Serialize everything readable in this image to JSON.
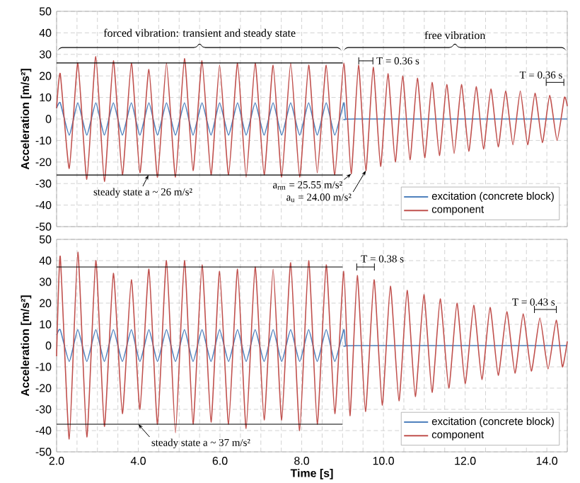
{
  "chart_data": [
    {
      "type": "line",
      "ylabel": "Acceleration [m/s²]",
      "xlim": [
        2.0,
        14.5
      ],
      "ylim": [
        -50,
        50
      ],
      "xticks": [
        {
          "value": 2,
          "label": null
        },
        {
          "value": 2.5,
          "label": null
        },
        {
          "value": 3,
          "label": null
        },
        {
          "value": 3.5,
          "label": null
        },
        {
          "value": 4,
          "label": null
        },
        {
          "value": 4.5,
          "label": null
        },
        {
          "value": 5,
          "label": null
        },
        {
          "value": 5.5,
          "label": null
        },
        {
          "value": 6,
          "label": null
        },
        {
          "value": 6.5,
          "label": null
        },
        {
          "value": 7,
          "label": null
        },
        {
          "value": 7.5,
          "label": null
        },
        {
          "value": 8,
          "label": null
        },
        {
          "value": 8.5,
          "label": null
        },
        {
          "value": 9,
          "label": null
        },
        {
          "value": 9.5,
          "label": null
        },
        {
          "value": 10,
          "label": null
        },
        {
          "value": 10.5,
          "label": null
        },
        {
          "value": 11,
          "label": null
        },
        {
          "value": 11.5,
          "label": null
        },
        {
          "value": 12,
          "label": null
        },
        {
          "value": 12.5,
          "label": null
        },
        {
          "value": 13,
          "label": null
        },
        {
          "value": 13.5,
          "label": null
        },
        {
          "value": 14,
          "label": null
        },
        {
          "value": 14.5,
          "label": null
        }
      ],
      "yticks": [
        -50,
        -40,
        -30,
        -20,
        -10,
        0,
        10,
        20,
        30,
        40,
        50
      ],
      "tick_labels": "y",
      "grid": true,
      "legend": "bottom right",
      "series": [
        {
          "name": "excitation (concrete block)",
          "color": "#4f81bd",
          "x": [
            2.0,
            2.09,
            2.31,
            2.52,
            2.74,
            2.96,
            3.17,
            3.39,
            3.61,
            3.83,
            4.04,
            4.26,
            4.47,
            4.69,
            4.91,
            5.13,
            5.34,
            5.56,
            5.78,
            5.99,
            6.21,
            6.43,
            6.64,
            6.86,
            7.08,
            7.3,
            7.51,
            7.73,
            7.95,
            8.17,
            8.38,
            8.6,
            8.81,
            9.03,
            9.08,
            9.3,
            14.5
          ],
          "values": [
            5,
            7.5,
            -7.5,
            7.5,
            -7.5,
            7.5,
            -7.5,
            7.5,
            -7.5,
            7.5,
            -7.5,
            7.5,
            -7.5,
            7.5,
            -7.5,
            7.5,
            -7.5,
            7.5,
            -7.5,
            7.5,
            -7.5,
            7.5,
            -7.5,
            7.5,
            -7.5,
            7.5,
            -7.5,
            7.5,
            -7.5,
            7.5,
            -7.5,
            7.5,
            -7.5,
            7.5,
            0,
            0,
            0
          ]
        },
        {
          "name": "component",
          "color": "#c0504d",
          "x": [
            2.0,
            2.09,
            2.31,
            2.52,
            2.74,
            2.96,
            3.17,
            3.39,
            3.61,
            3.83,
            4.04,
            4.26,
            4.47,
            4.69,
            4.91,
            5.13,
            5.34,
            5.56,
            5.78,
            5.99,
            6.21,
            6.43,
            6.64,
            6.86,
            7.08,
            7.3,
            7.51,
            7.73,
            7.95,
            8.17,
            8.38,
            8.6,
            8.81,
            9.03,
            9.21,
            9.39,
            9.57,
            9.75,
            9.93,
            10.11,
            10.29,
            10.47,
            10.65,
            10.83,
            11.01,
            11.19,
            11.37,
            11.55,
            11.73,
            11.91,
            12.09,
            12.27,
            12.45,
            12.63,
            12.81,
            12.99,
            13.17,
            13.35,
            13.53,
            13.71,
            13.89,
            14.07,
            14.25,
            14.43,
            14.5
          ],
          "values": [
            5,
            21,
            -23,
            26,
            -28,
            29,
            -29,
            27,
            -26,
            26,
            -25,
            23,
            -27,
            26,
            -27,
            28,
            -24,
            27,
            -26,
            25,
            -26,
            26,
            -27,
            26,
            -26,
            25,
            -27,
            26,
            -27,
            25,
            -25,
            25,
            -26,
            26,
            -25.5,
            25,
            -24,
            24,
            -22,
            21,
            -20,
            20,
            -19,
            19,
            -18,
            17,
            -17,
            16,
            -16,
            16,
            -15,
            15,
            -14,
            14,
            -13,
            13,
            -12,
            13,
            -12,
            12,
            -11,
            11,
            -10,
            10,
            6
          ]
        },
        {
          "type": "line",
          "color": "#000000",
          "x": [
            2.0,
            9.0
          ],
          "values": [
            26,
            26
          ]
        },
        {
          "type": "line",
          "color": "#000000",
          "x": [
            2.0,
            9.0
          ],
          "values": [
            -26,
            -26
          ]
        }
      ],
      "annotations": [
        {
          "text": "steady state a ~ 26 m/s²",
          "x": 4.25,
          "y": -26
        },
        {
          "text": "a$_{rm}$ = 25.55 m/s²",
          "x": 9.21,
          "y": -25.5
        },
        {
          "text": "a$_{u}$ = 24.00 m/s²",
          "x": 9.57,
          "y": -24
        },
        "T = 0.36 s",
        "T = 0.36 s",
        "forced vibration: transient and steady state",
        "free vibration"
      ]
    },
    {
      "type": "line",
      "xlabel": "Time [s]",
      "ylabel": "Acceleration [m/s²]",
      "xlim": [
        2.0,
        14.5
      ],
      "ylim": [
        -50,
        50
      ],
      "xticks": [
        {
          "value": 2,
          "label": "2.0"
        },
        {
          "value": 2.5,
          "label": null
        },
        {
          "value": 3,
          "label": null
        },
        {
          "value": 3.5,
          "label": null
        },
        {
          "value": 4,
          "label": "4.0"
        },
        {
          "value": 4.5,
          "label": null
        },
        {
          "value": 5,
          "label": null
        },
        {
          "value": 5.5,
          "label": null
        },
        {
          "value": 6,
          "label": "6.0"
        },
        {
          "value": 6.5,
          "label": null
        },
        {
          "value": 7,
          "label": null
        },
        {
          "value": 7.5,
          "label": null
        },
        {
          "value": 8,
          "label": "8.0"
        },
        {
          "value": 8.5,
          "label": null
        },
        {
          "value": 9,
          "label": null
        },
        {
          "value": 9.5,
          "label": null
        },
        {
          "value": 10,
          "label": "10.0"
        },
        {
          "value": 10.5,
          "label": null
        },
        {
          "value": 11,
          "label": null
        },
        {
          "value": 11.5,
          "label": null
        },
        {
          "value": 12,
          "label": "12.0"
        },
        {
          "value": 12.5,
          "label": null
        },
        {
          "value": 13,
          "label": null
        },
        {
          "value": 13.5,
          "label": null
        },
        {
          "value": 14,
          "label": "14.0"
        },
        {
          "value": 14.5,
          "label": null
        }
      ],
      "yticks": [
        -50,
        -40,
        -30,
        -20,
        -10,
        0,
        10,
        20,
        30,
        40,
        50
      ],
      "grid": true,
      "legend": "bottom right",
      "series": [
        {
          "name": "excitation (concrete block)",
          "color": "#4f81bd",
          "x": [
            2.0,
            2.09,
            2.31,
            2.52,
            2.74,
            2.96,
            3.17,
            3.39,
            3.61,
            3.83,
            4.04,
            4.26,
            4.47,
            4.69,
            4.91,
            5.13,
            5.34,
            5.56,
            5.78,
            5.99,
            6.21,
            6.43,
            6.64,
            6.86,
            7.08,
            7.3,
            7.51,
            7.73,
            7.95,
            8.17,
            8.38,
            8.6,
            8.81,
            9.03,
            9.08,
            9.3,
            14.5
          ],
          "values": [
            5,
            7.5,
            -7.5,
            7.5,
            -7.5,
            7.5,
            -7.5,
            7.5,
            -7.5,
            7.5,
            -7.5,
            7.5,
            -7.5,
            7.5,
            -7.5,
            7.5,
            -7.5,
            7.5,
            -7.5,
            7.5,
            -7.5,
            7.5,
            -7.5,
            7.5,
            -7.5,
            7.5,
            -7.5,
            7.5,
            -7.5,
            7.5,
            -7.5,
            7.5,
            -7.5,
            7.5,
            0,
            0,
            0
          ]
        },
        {
          "name": "component",
          "color": "#c0504d",
          "x": [
            2.0,
            2.09,
            2.31,
            2.52,
            2.74,
            2.96,
            3.17,
            3.39,
            3.61,
            3.83,
            4.04,
            4.26,
            4.47,
            4.69,
            4.91,
            5.13,
            5.34,
            5.56,
            5.78,
            5.99,
            6.21,
            6.43,
            6.64,
            6.86,
            7.08,
            7.3,
            7.51,
            7.73,
            7.95,
            8.17,
            8.38,
            8.6,
            8.81,
            9.03,
            9.18,
            9.36,
            9.56,
            9.77,
            9.97,
            10.17,
            10.38,
            10.58,
            10.78,
            10.99,
            11.19,
            11.39,
            11.6,
            11.8,
            12.0,
            12.21,
            12.41,
            12.61,
            12.81,
            13.02,
            13.22,
            13.42,
            13.62,
            13.83,
            14.03,
            14.23,
            14.38,
            14.5
          ],
          "values": [
            -5,
            42,
            -44,
            44,
            -43,
            40,
            -38,
            34,
            -32,
            31,
            -30,
            36,
            -37,
            40,
            -41,
            40,
            -37,
            38,
            -36,
            35,
            -37,
            36,
            -39,
            37,
            -35,
            36,
            -35,
            39,
            -40,
            40,
            -37,
            38,
            -32,
            35,
            -33,
            33,
            -31,
            31,
            -28,
            28,
            -26,
            26,
            -24,
            24,
            -22,
            22,
            -20,
            20,
            -18,
            19,
            -16,
            18,
            -14,
            16,
            -13,
            15,
            -12,
            13,
            -11,
            12,
            -10,
            2
          ]
        },
        {
          "type": "line",
          "color": "#000000",
          "x": [
            2.0,
            9.0
          ],
          "values": [
            37,
            37
          ]
        },
        {
          "type": "line",
          "color": "#000000",
          "x": [
            2.0,
            9.0
          ],
          "values": [
            -37,
            -37
          ]
        }
      ],
      "annotations": [
        {
          "text": "steady state a ~ 37 m/s²",
          "x": 4.0,
          "y": -37
        },
        "T = 0.38 s",
        "T = 0.43 s"
      ]
    }
  ]
}
